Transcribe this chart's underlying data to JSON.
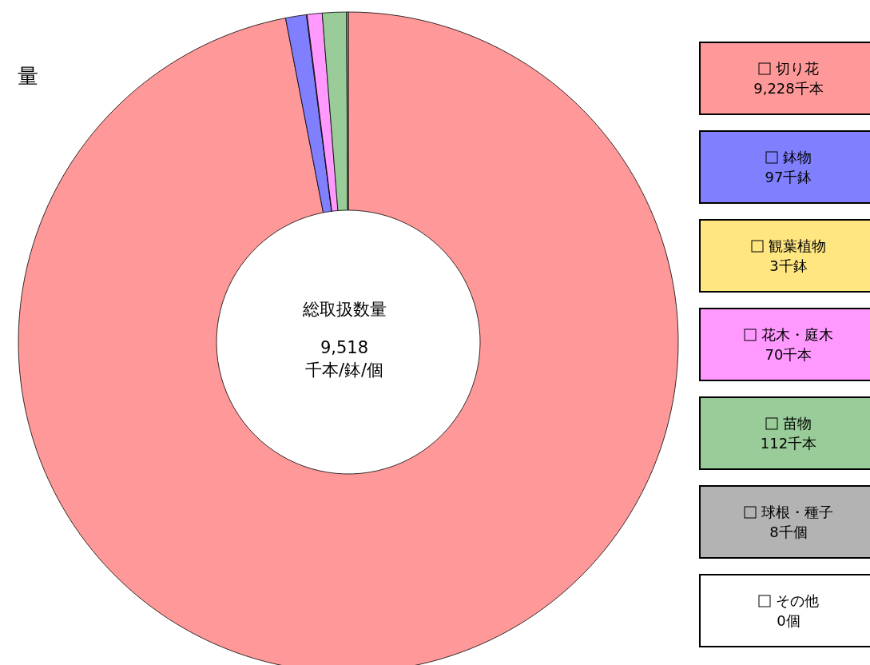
{
  "chart_data": {
    "type": "donut",
    "categories": [
      "切り花",
      "鉢物",
      "観葉植物",
      "花木・庭木",
      "苗物",
      "球根・種子",
      "その他"
    ],
    "values": [
      9228,
      97,
      3,
      70,
      112,
      8,
      0
    ],
    "value_labels": [
      "9,228千本",
      "97千鉢",
      "3千鉢",
      "70千本",
      "112千本",
      "8千個",
      "0個"
    ],
    "colors": [
      "#ff9999",
      "#8080ff",
      "#ffe680",
      "#ff99ff",
      "#99cc99",
      "#b3b3b3",
      "#ffffff"
    ],
    "legend": "right",
    "annotations": [
      "量",
      "総取扱数量",
      "9,518",
      "千本/鉢/個"
    ]
  }
}
